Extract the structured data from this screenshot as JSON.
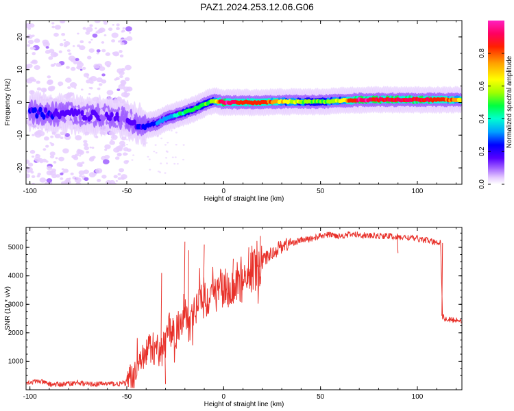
{
  "title": "PAZ1.2024.253.12.06.G06",
  "colors": {
    "snr_line": "#e8312a",
    "axis": "#000000",
    "colorbar": [
      "#ffffff",
      "#e6ccff",
      "#a060ff",
      "#5500ff",
      "#0000ff",
      "#00a0ff",
      "#00ffd0",
      "#00ff40",
      "#a0ff00",
      "#ffff00",
      "#ffa000",
      "#ff2000",
      "#ff0060",
      "#ff20c0"
    ]
  },
  "chart_data": [
    {
      "type": "heatmap",
      "name": "spectrogram",
      "xlabel": "Height of straight line (km)",
      "ylabel": "Frequency (Hz)",
      "xlim": [
        -102,
        123
      ],
      "ylim": [
        -25,
        25
      ],
      "xticks": [
        -100,
        -50,
        0,
        50,
        100
      ],
      "yticks": [
        -20,
        -10,
        0,
        10,
        20
      ],
      "colorbar": {
        "label": "Normalized spectral amplitude",
        "range": [
          0,
          1
        ],
        "ticks": [
          "0.0",
          "0.2",
          "0.4",
          "0.6",
          "0.8"
        ]
      },
      "ridge": {
        "x": [
          -100,
          -90,
          -80,
          -70,
          -60,
          -50,
          -45,
          -40,
          -35,
          -30,
          -25,
          -20,
          -15,
          -10,
          -5,
          0,
          10,
          20,
          30,
          50,
          60,
          70,
          80,
          100,
          110,
          123
        ],
        "y": [
          -3,
          -3.5,
          -3.5,
          -4,
          -4,
          -5,
          -6.5,
          -7,
          -6.5,
          -5,
          -4,
          -3,
          -2,
          -0.5,
          0.5,
          0,
          0,
          0,
          0.2,
          0.2,
          0.5,
          0.8,
          0.8,
          0.8,
          0.8,
          0.8
        ],
        "amplitude": [
          0.3,
          0.25,
          0.2,
          0.2,
          0.2,
          0.2,
          0.25,
          0.3,
          0.35,
          0.4,
          0.45,
          0.5,
          0.5,
          0.55,
          0.6,
          0.95,
          0.85,
          0.85,
          0.7,
          0.55,
          0.65,
          0.95,
          0.9,
          0.9,
          0.85,
          0.75
        ]
      },
      "noise_region": {
        "x": [
          -100,
          -50
        ],
        "y": [
          -25,
          25
        ]
      }
    },
    {
      "type": "line",
      "name": "snr",
      "xlabel": "Height of straight line (km)",
      "ylabel": "SNR (10 * v/v)",
      "xlim": [
        -102,
        123
      ],
      "ylim": [
        0,
        5700
      ],
      "xticks": [
        -100,
        -50,
        0,
        50,
        100
      ],
      "yticks": [
        1000,
        2000,
        3000,
        4000,
        5000
      ],
      "series": [
        {
          "x": [
            -102,
            -95,
            -90,
            -85,
            -80,
            -75,
            -70,
            -65,
            -60,
            -55,
            -50,
            -47,
            -45,
            -42,
            -40,
            -38,
            -35,
            -32,
            -30,
            -28,
            -25,
            -22,
            -20,
            -18,
            -15,
            -12,
            -10,
            -8,
            -5,
            -2,
            0,
            3,
            5,
            8,
            10,
            13,
            15,
            18,
            20,
            23,
            25,
            28,
            30,
            35,
            40,
            45,
            50,
            55,
            60,
            65,
            70,
            75,
            80,
            85,
            90,
            95,
            100,
            105,
            110,
            112,
            113,
            114,
            116,
            120,
            123
          ],
          "y": [
            250,
            300,
            200,
            180,
            220,
            250,
            200,
            200,
            220,
            200,
            250,
            450,
            700,
            1000,
            1300,
            1500,
            1400,
            1300,
            1700,
            2100,
            1900,
            2600,
            2800,
            2300,
            2700,
            3200,
            3600,
            3100,
            3400,
            3500,
            3600,
            3500,
            3700,
            3800,
            3600,
            3900,
            4300,
            4100,
            4500,
            4700,
            4800,
            4950,
            5050,
            5150,
            5250,
            5300,
            5400,
            5450,
            5400,
            5450,
            5450,
            5400,
            5400,
            5400,
            5350,
            5350,
            5300,
            5250,
            5150,
            5200,
            2600,
            2500,
            2450,
            2450,
            2450
          ],
          "spikes": [
            {
              "x": -32,
              "y": 4100
            },
            {
              "x": -30,
              "y": 200
            },
            {
              "x": -20,
              "y": 5200
            },
            {
              "x": -18,
              "y": 4900
            },
            {
              "x": -10,
              "y": 5100
            },
            {
              "x": 5,
              "y": 4600
            },
            {
              "x": 13,
              "y": 5000
            },
            {
              "x": 19,
              "y": 5400
            },
            {
              "x": 90,
              "y": 4800
            },
            {
              "x": 113,
              "y": 5150
            }
          ]
        }
      ]
    }
  ]
}
